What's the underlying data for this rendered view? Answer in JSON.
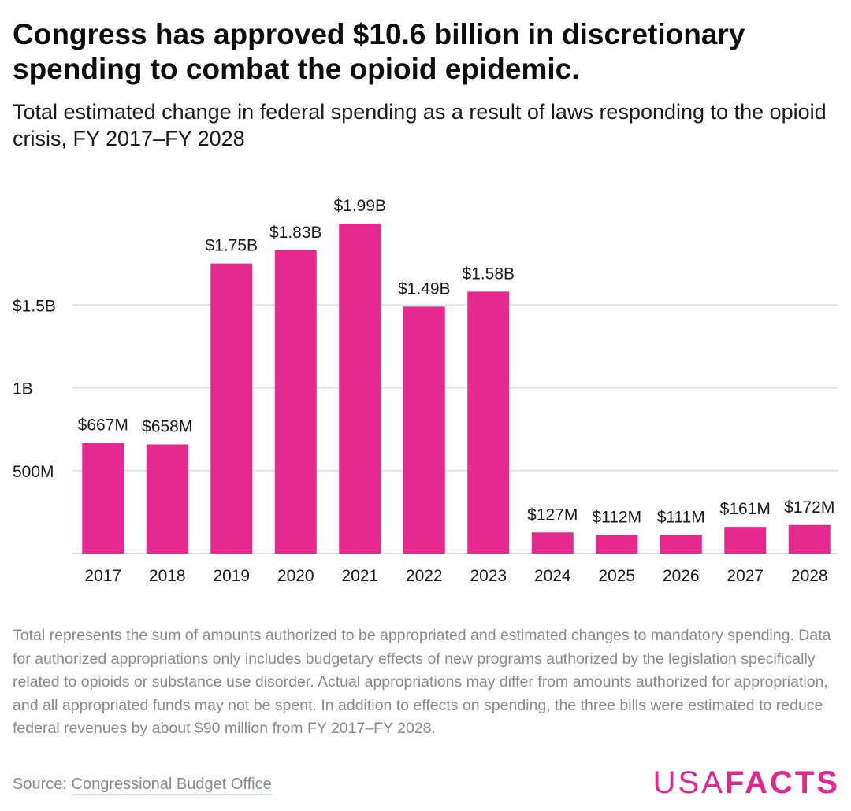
{
  "title": "Congress has approved $10.6 billion in discretionary spending to combat the opioid epidemic.",
  "subtitle": "Total estimated change in federal spending as a result of laws responding to the opioid crisis, FY 2017–FY 2028",
  "note": "Total represents the sum of amounts authorized to be appropriated and estimated changes to mandatory spending. Data for authorized appropriations only includes budgetary effects of new programs authorized by the legislation specifically related to opioids or substance use disorder. Actual appropriations may differ from amounts authorized for appropriation, and all appropriated funds may not be spent. In addition to effects on spending, the three bills were estimated to reduce federal revenues by about $90 million from FY 2017–FY 2028.",
  "source": {
    "label": "Source:",
    "link_text": "Congressional Budget Office"
  },
  "brand": {
    "part1": "USA",
    "part2": "FACTS"
  },
  "colors": {
    "bar": "#e5298f",
    "grid": "#dddddd",
    "brand": "#e0298f"
  },
  "chart_data": {
    "type": "bar",
    "title": "Congress has approved $10.6 billion in discretionary spending to combat the opioid epidemic.",
    "subtitle": "Total estimated change in federal spending as a result of laws responding to the opioid crisis, FY 2017–FY 2028",
    "xlabel": "",
    "ylabel": "",
    "categories": [
      "2017",
      "2018",
      "2019",
      "2020",
      "2021",
      "2022",
      "2023",
      "2024",
      "2025",
      "2026",
      "2027",
      "2028"
    ],
    "values": [
      667,
      658,
      1750,
      1830,
      1990,
      1490,
      1580,
      127,
      112,
      111,
      161,
      172
    ],
    "value_units": "millions of dollars",
    "data_labels": [
      "$667M",
      "$658M",
      "$1.75B",
      "$1.83B",
      "$1.99B",
      "$1.49B",
      "$1.58B",
      "$127M",
      "$112M",
      "$111M",
      "$161M",
      "$172M"
    ],
    "yticks": [
      500,
      1000,
      1500
    ],
    "ytick_labels": [
      "500M",
      "1B",
      "$1.5B"
    ],
    "ylim": [
      0,
      2000
    ],
    "grid": true,
    "legend": "none"
  }
}
